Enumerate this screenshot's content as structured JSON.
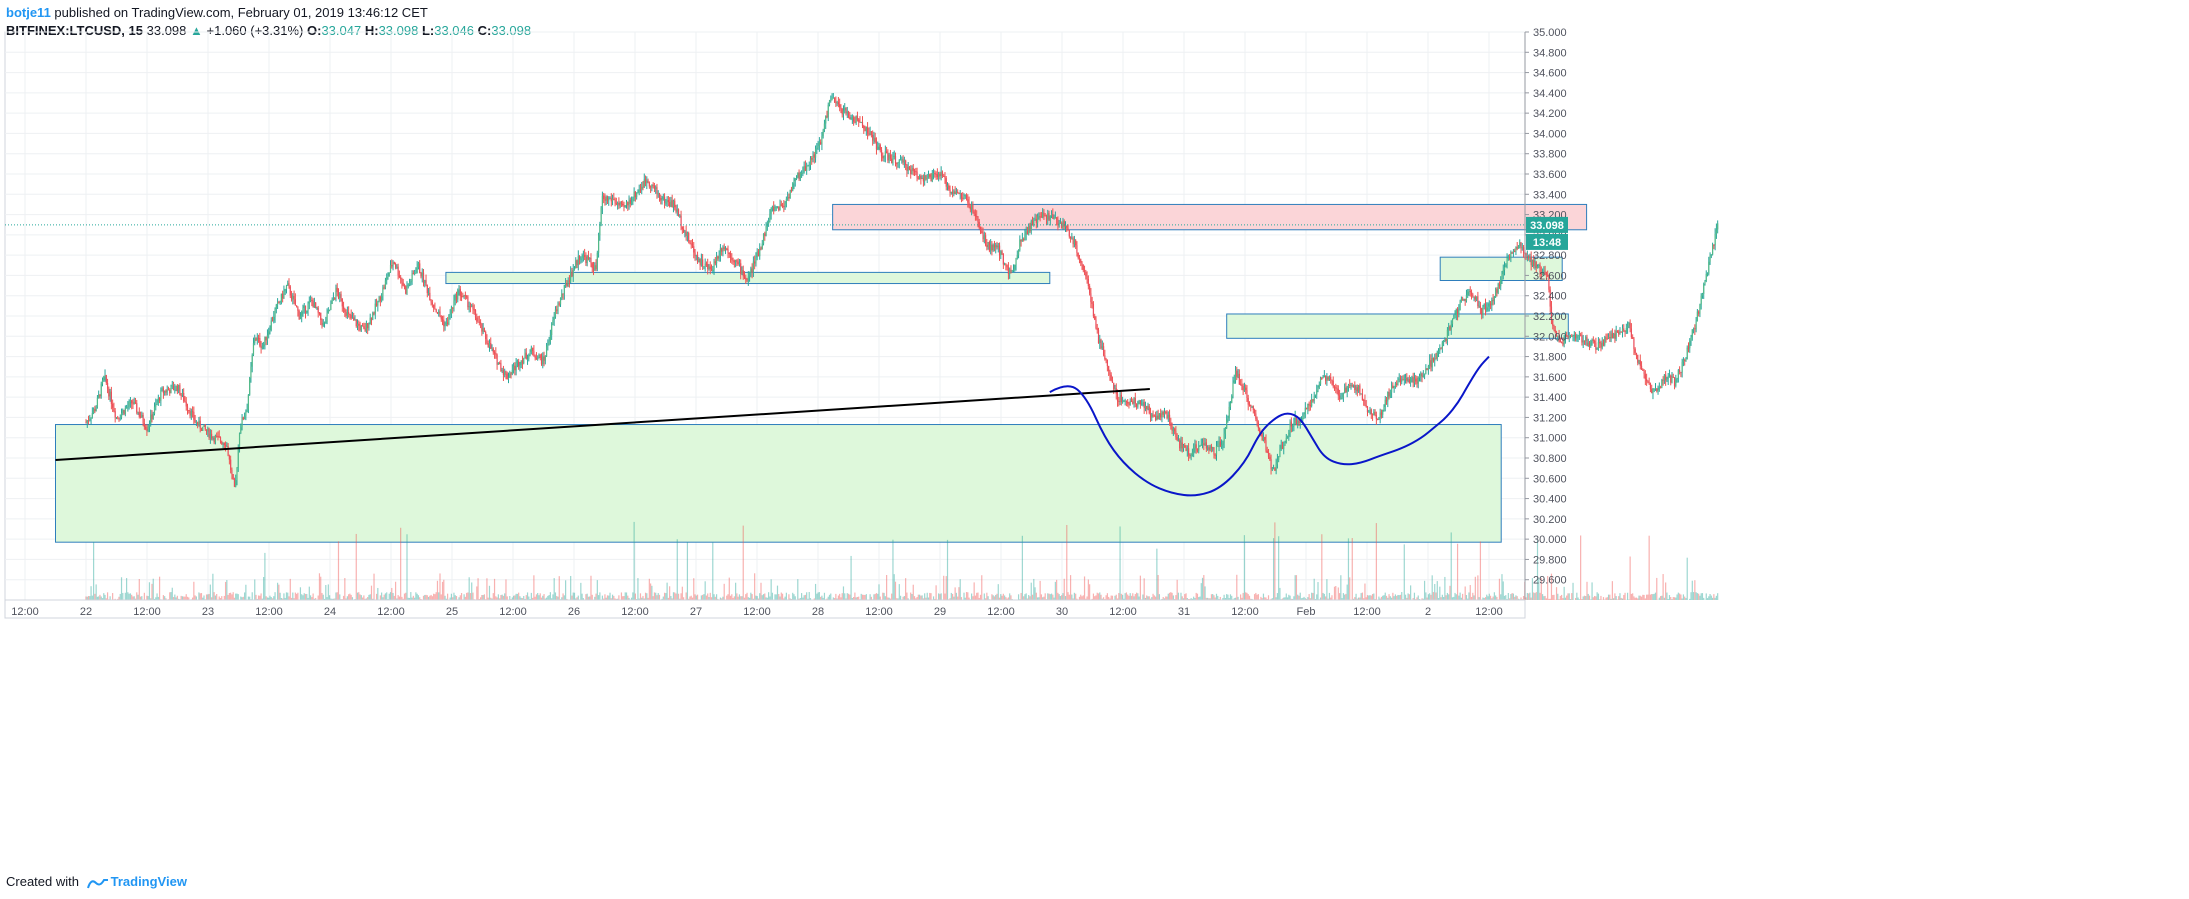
{
  "header": {
    "author": "botje11",
    "published_text": "published on TradingView.com, February 01, 2019 13:46:12 CET"
  },
  "info": {
    "symbol": "BITFINEX:LTCUSD, 15",
    "last": "33.098",
    "arrow": "▲",
    "change": "+1.060 (+3.31%)",
    "o_label": "O:",
    "o": "33.047",
    "h_label": "H:",
    "h": "33.098",
    "l_label": "L:",
    "l": "33.046",
    "c_label": "C:",
    "c": "33.098"
  },
  "footer": {
    "created_with": "Created with",
    "brand": "TradingView"
  },
  "colors": {
    "up": "#26a69a",
    "down": "#ef5350",
    "up_body": "#53b987",
    "down_body": "#eb4d5c",
    "green_zone_fill": "#dcf8d9",
    "green_zone_stroke": "#2e7ebc",
    "red_zone_fill": "#fbd3d6",
    "grid": "#eef0f3",
    "price_label_bg": "#26a69a",
    "trend_line": "#000000",
    "projection": "#0a16c9"
  },
  "chart_data": {
    "type": "candlestick",
    "title": "",
    "xlabel": "",
    "ylabel": "",
    "ylim": [
      29.4,
      35.0
    ],
    "y_ticks": [
      "29.600",
      "29.800",
      "30.000",
      "30.200",
      "30.400",
      "30.600",
      "30.800",
      "31.000",
      "31.200",
      "31.400",
      "31.600",
      "31.800",
      "32.000",
      "32.200",
      "32.400",
      "32.600",
      "32.800",
      "33.000",
      "33.200",
      "33.400",
      "33.600",
      "33.800",
      "34.000",
      "34.200",
      "34.400",
      "34.600",
      "34.800",
      "35.000"
    ],
    "x_ticks": [
      "12:00",
      "22",
      "12:00",
      "23",
      "12:00",
      "24",
      "12:00",
      "25",
      "12:00",
      "26",
      "12:00",
      "27",
      "12:00",
      "28",
      "12:00",
      "29",
      "12:00",
      "30",
      "12:00",
      "31",
      "12:00",
      "Feb",
      "12:00",
      "2",
      "12:00"
    ],
    "current_price_label": "33.098",
    "countdown_label": "13:48",
    "price_path": [
      [
        0,
        31.15
      ],
      [
        0.08,
        31.3
      ],
      [
        0.15,
        31.6
      ],
      [
        0.25,
        31.2
      ],
      [
        0.38,
        31.35
      ],
      [
        0.5,
        31.1
      ],
      [
        0.62,
        31.45
      ],
      [
        0.75,
        31.5
      ],
      [
        0.9,
        31.15
      ],
      [
        1.05,
        31.0
      ],
      [
        1.15,
        30.95
      ],
      [
        1.22,
        30.45
      ],
      [
        1.26,
        31.1
      ],
      [
        1.32,
        31.3
      ],
      [
        1.38,
        32.0
      ],
      [
        1.45,
        31.9
      ],
      [
        1.55,
        32.25
      ],
      [
        1.65,
        32.5
      ],
      [
        1.75,
        32.2
      ],
      [
        1.85,
        32.35
      ],
      [
        1.95,
        32.1
      ],
      [
        2.05,
        32.45
      ],
      [
        2.15,
        32.2
      ],
      [
        2.28,
        32.05
      ],
      [
        2.4,
        32.35
      ],
      [
        2.52,
        32.75
      ],
      [
        2.62,
        32.45
      ],
      [
        2.72,
        32.7
      ],
      [
        2.85,
        32.3
      ],
      [
        2.95,
        32.1
      ],
      [
        3.05,
        32.45
      ],
      [
        3.15,
        32.3
      ],
      [
        3.25,
        32.05
      ],
      [
        3.35,
        31.8
      ],
      [
        3.45,
        31.6
      ],
      [
        3.55,
        31.75
      ],
      [
        3.65,
        31.85
      ],
      [
        3.75,
        31.75
      ],
      [
        3.85,
        32.25
      ],
      [
        3.95,
        32.55
      ],
      [
        4.05,
        32.8
      ],
      [
        4.12,
        32.75
      ],
      [
        4.18,
        32.65
      ],
      [
        4.23,
        33.35
      ],
      [
        4.32,
        33.35
      ],
      [
        4.4,
        33.25
      ],
      [
        4.5,
        33.4
      ],
      [
        4.6,
        33.55
      ],
      [
        4.72,
        33.35
      ],
      [
        4.82,
        33.3
      ],
      [
        4.92,
        33.0
      ],
      [
        5.02,
        32.75
      ],
      [
        5.12,
        32.65
      ],
      [
        5.22,
        32.9
      ],
      [
        5.32,
        32.75
      ],
      [
        5.42,
        32.55
      ],
      [
        5.52,
        32.85
      ],
      [
        5.62,
        33.25
      ],
      [
        5.72,
        33.3
      ],
      [
        5.82,
        33.55
      ],
      [
        5.92,
        33.7
      ],
      [
        6.02,
        33.9
      ],
      [
        6.1,
        34.35
      ],
      [
        6.18,
        34.25
      ],
      [
        6.28,
        34.15
      ],
      [
        6.36,
        34.1
      ],
      [
        6.45,
        33.95
      ],
      [
        6.52,
        33.8
      ],
      [
        6.6,
        33.75
      ],
      [
        6.7,
        33.7
      ],
      [
        6.8,
        33.6
      ],
      [
        6.9,
        33.55
      ],
      [
        7.0,
        33.6
      ],
      [
        7.08,
        33.45
      ],
      [
        7.15,
        33.4
      ],
      [
        7.22,
        33.35
      ],
      [
        7.3,
        33.15
      ],
      [
        7.38,
        32.9
      ],
      [
        7.48,
        32.85
      ],
      [
        7.58,
        32.6
      ],
      [
        7.66,
        32.95
      ],
      [
        7.75,
        33.1
      ],
      [
        7.85,
        33.2
      ],
      [
        7.95,
        33.15
      ],
      [
        8.05,
        33.05
      ],
      [
        8.12,
        32.85
      ],
      [
        8.2,
        32.6
      ],
      [
        8.28,
        32.05
      ],
      [
        8.36,
        31.75
      ],
      [
        8.45,
        31.4
      ],
      [
        8.55,
        31.35
      ],
      [
        8.65,
        31.35
      ],
      [
        8.75,
        31.2
      ],
      [
        8.85,
        31.25
      ],
      [
        8.95,
        30.95
      ],
      [
        9.05,
        30.85
      ],
      [
        9.15,
        30.95
      ],
      [
        9.25,
        30.85
      ],
      [
        9.33,
        31.0
      ],
      [
        9.42,
        31.65
      ],
      [
        9.5,
        31.45
      ],
      [
        9.58,
        31.2
      ],
      [
        9.66,
        30.95
      ],
      [
        9.73,
        30.65
      ],
      [
        9.8,
        30.9
      ],
      [
        9.88,
        31.15
      ],
      [
        9.96,
        31.2
      ],
      [
        10.05,
        31.35
      ],
      [
        10.12,
        31.6
      ],
      [
        10.2,
        31.55
      ],
      [
        10.28,
        31.4
      ],
      [
        10.36,
        31.55
      ],
      [
        10.45,
        31.45
      ],
      [
        10.52,
        31.25
      ],
      [
        10.6,
        31.2
      ],
      [
        10.7,
        31.5
      ],
      [
        10.8,
        31.6
      ],
      [
        10.9,
        31.55
      ],
      [
        11.0,
        31.7
      ],
      [
        11.1,
        31.85
      ],
      [
        11.2,
        32.15
      ],
      [
        11.28,
        32.35
      ],
      [
        11.36,
        32.45
      ],
      [
        11.44,
        32.25
      ],
      [
        11.52,
        32.35
      ],
      [
        11.6,
        32.55
      ],
      [
        11.68,
        32.85
      ],
      [
        11.76,
        32.9
      ],
      [
        11.84,
        32.75
      ],
      [
        11.92,
        32.65
      ],
      [
        11.98,
        32.6
      ],
      [
        12.02,
        32.1
      ],
      [
        12.1,
        31.95
      ],
      [
        12.2,
        32.0
      ],
      [
        12.3,
        31.95
      ],
      [
        12.4,
        31.9
      ],
      [
        12.5,
        32.0
      ],
      [
        12.6,
        32.05
      ],
      [
        12.65,
        32.1
      ],
      [
        12.7,
        31.85
      ],
      [
        12.78,
        31.55
      ],
      [
        12.86,
        31.45
      ],
      [
        12.94,
        31.6
      ],
      [
        13.02,
        31.55
      ],
      [
        13.1,
        31.75
      ],
      [
        13.16,
        32.0
      ],
      [
        13.22,
        32.25
      ],
      [
        13.28,
        32.6
      ],
      [
        13.33,
        32.85
      ],
      [
        13.38,
        33.098
      ]
    ],
    "volume_note": "volume histogram along the bottom of the price pane",
    "zones": [
      {
        "kind": "support",
        "x0": -0.25,
        "x1": 11.6,
        "y0": 29.97,
        "y1": 31.13
      },
      {
        "kind": "support",
        "x0": 2.95,
        "x1": 7.9,
        "y0": 32.52,
        "y1": 32.63
      },
      {
        "kind": "resistance",
        "x0": 6.12,
        "x1": 12.3,
        "y0": 33.05,
        "y1": 33.3
      },
      {
        "kind": "support",
        "x0": 9.35,
        "x1": 12.15,
        "y0": 31.98,
        "y1": 32.22
      },
      {
        "kind": "support",
        "x0": 11.1,
        "x1": 12.1,
        "y0": 32.55,
        "y1": 32.78
      }
    ],
    "trend_line": {
      "x0": -0.25,
      "y0": 30.78,
      "x1": 8.72,
      "y1": 31.48
    },
    "projection_curve": [
      [
        7.9,
        31.45
      ],
      [
        8.05,
        31.55
      ],
      [
        8.2,
        31.4
      ],
      [
        8.35,
        31.0
      ],
      [
        8.5,
        30.75
      ],
      [
        8.7,
        30.55
      ],
      [
        8.9,
        30.45
      ],
      [
        9.1,
        30.42
      ],
      [
        9.3,
        30.5
      ],
      [
        9.5,
        30.75
      ],
      [
        9.62,
        31.05
      ],
      [
        9.75,
        31.2
      ],
      [
        9.85,
        31.25
      ],
      [
        9.95,
        31.2
      ],
      [
        10.05,
        31.0
      ],
      [
        10.15,
        30.8
      ],
      [
        10.3,
        30.73
      ],
      [
        10.45,
        30.75
      ],
      [
        10.6,
        30.82
      ],
      [
        10.8,
        30.9
      ],
      [
        10.95,
        31.0
      ],
      [
        11.05,
        31.1
      ],
      [
        11.15,
        31.2
      ],
      [
        11.25,
        31.35
      ],
      [
        11.32,
        31.5
      ],
      [
        11.42,
        31.7
      ],
      [
        11.5,
        31.8
      ]
    ]
  }
}
